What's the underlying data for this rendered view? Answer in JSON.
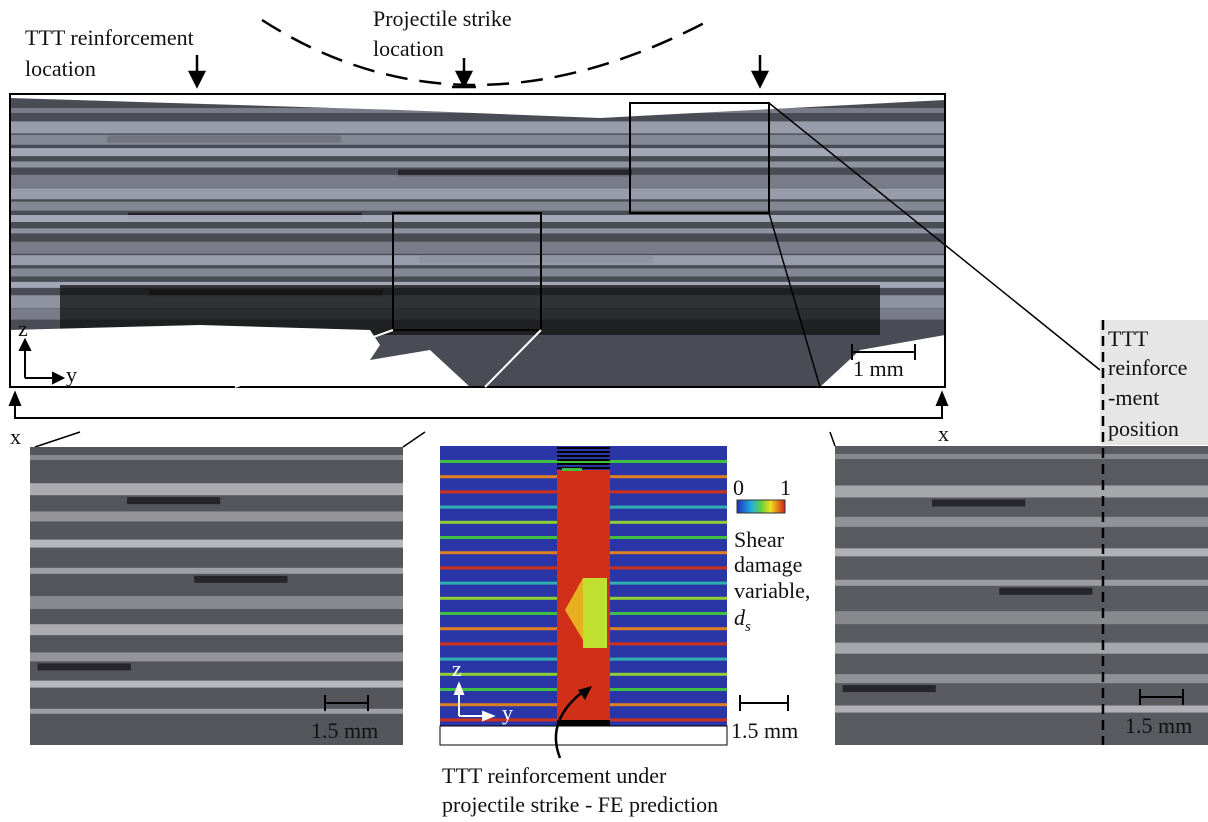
{
  "top_left_label": {
    "lines": [
      "TTT reinforcement",
      "location"
    ]
  },
  "strike_label": {
    "lines": [
      "Projectile strike",
      "location"
    ]
  },
  "top_axes": {
    "z": "z",
    "y": "y"
  },
  "top_scale": "1 mm",
  "x_labels": [
    "x",
    "x"
  ],
  "scale_bars": [
    "1.5 mm",
    "1.5 mm",
    "1.5 mm"
  ],
  "colorbar": {
    "min": "0",
    "max": "1"
  },
  "shear_label": {
    "lines": [
      "Shear",
      "damage",
      "variable,",
      "d"
    ],
    "subscript": "s"
  },
  "fe_axes": {
    "z": "z",
    "y": "y"
  },
  "fe_caption": {
    "lines": [
      "TTT reinforcement under",
      "projectile strike - FE prediction"
    ]
  },
  "right_label": {
    "lines": [
      "TTT",
      "reinforce",
      "-ment",
      "position"
    ]
  }
}
